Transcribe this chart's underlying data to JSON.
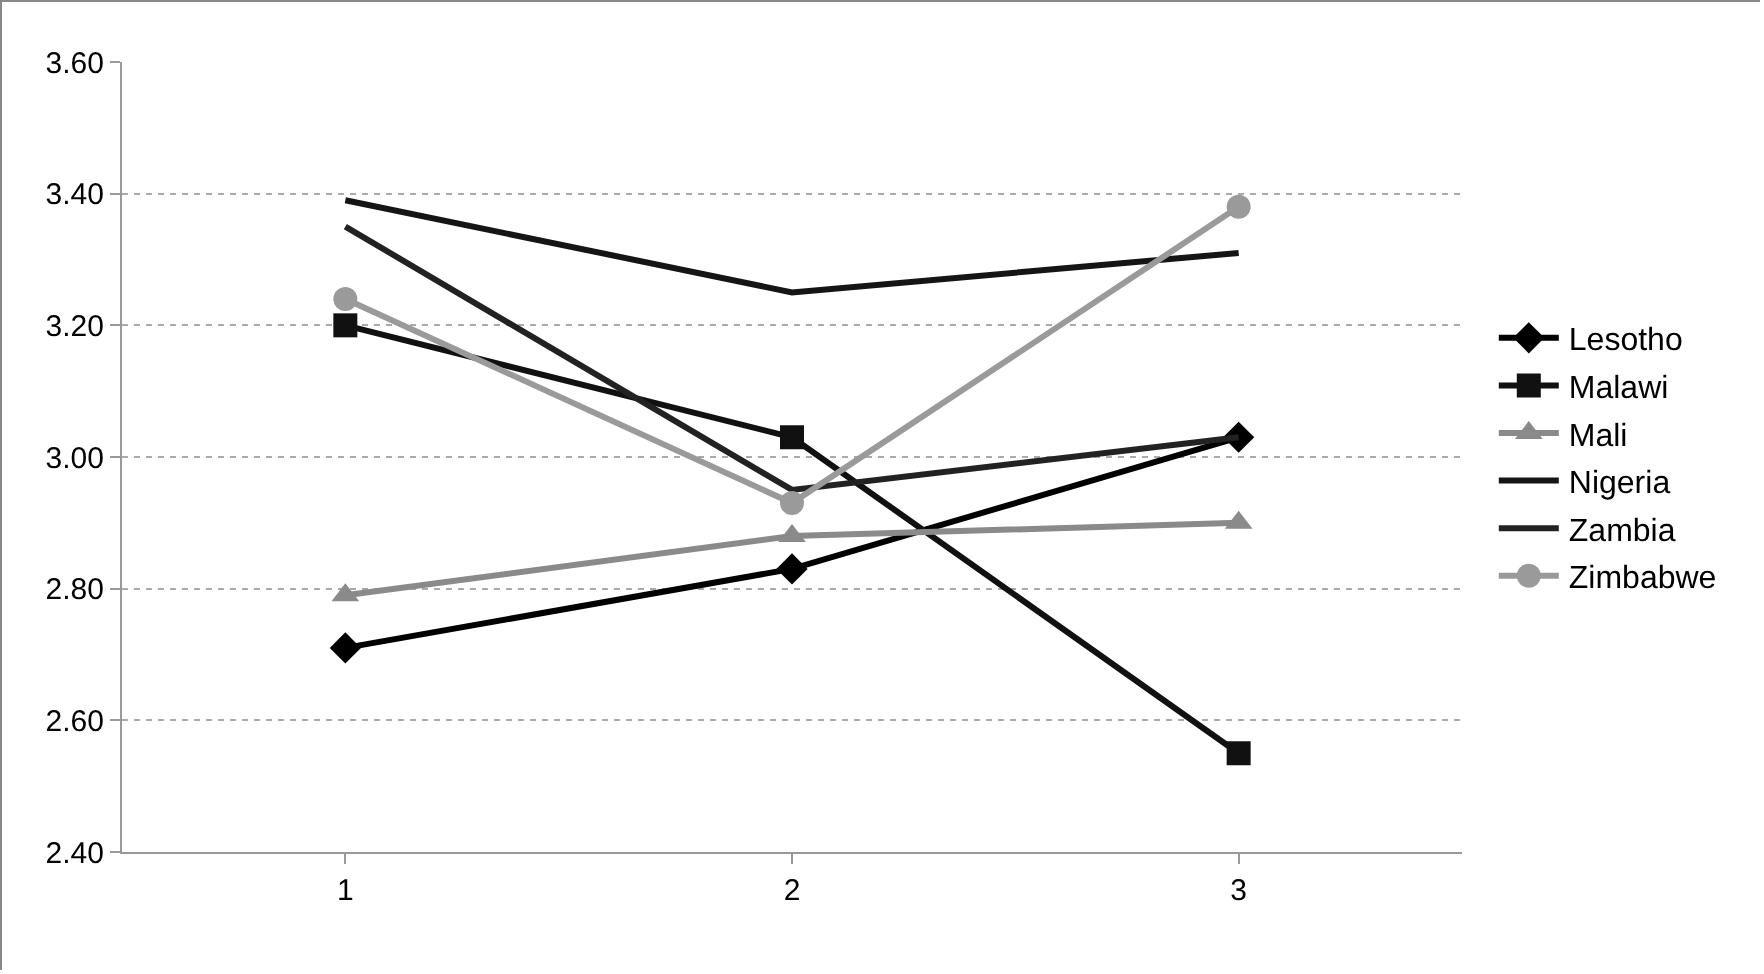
{
  "chart_data": {
    "type": "line",
    "categories": [
      "1",
      "2",
      "3"
    ],
    "series": [
      {
        "name": "Lesotho",
        "color": "#000000",
        "marker": "diamond",
        "values": [
          2.71,
          2.83,
          3.03
        ]
      },
      {
        "name": "Malawi",
        "color": "#111111",
        "marker": "square",
        "values": [
          3.2,
          3.03,
          2.55
        ]
      },
      {
        "name": "Mali",
        "color": "#8a8a8a",
        "marker": "triangle",
        "values": [
          2.79,
          2.88,
          2.9
        ]
      },
      {
        "name": "Nigeria",
        "color": "#151515",
        "marker": "none",
        "values": [
          3.39,
          3.25,
          3.31
        ]
      },
      {
        "name": "Zambia",
        "color": "#222222",
        "marker": "none",
        "values": [
          3.35,
          2.95,
          3.03
        ]
      },
      {
        "name": "Zimbabwe",
        "color": "#9a9a9a",
        "marker": "circle",
        "values": [
          3.24,
          2.93,
          3.38
        ]
      }
    ],
    "ylim": [
      2.4,
      3.6
    ],
    "yticks": [
      {
        "value": 2.4,
        "label": "2.40"
      },
      {
        "value": 2.6,
        "label": "2.60"
      },
      {
        "value": 2.8,
        "label": "2.80"
      },
      {
        "value": 3.0,
        "label": "3.00"
      },
      {
        "value": 3.2,
        "label": "3.20"
      },
      {
        "value": 3.4,
        "label": "3.40"
      },
      {
        "value": 3.6,
        "label": "3.60"
      }
    ],
    "grid": "y",
    "legend": "right",
    "line_style": "solid"
  }
}
